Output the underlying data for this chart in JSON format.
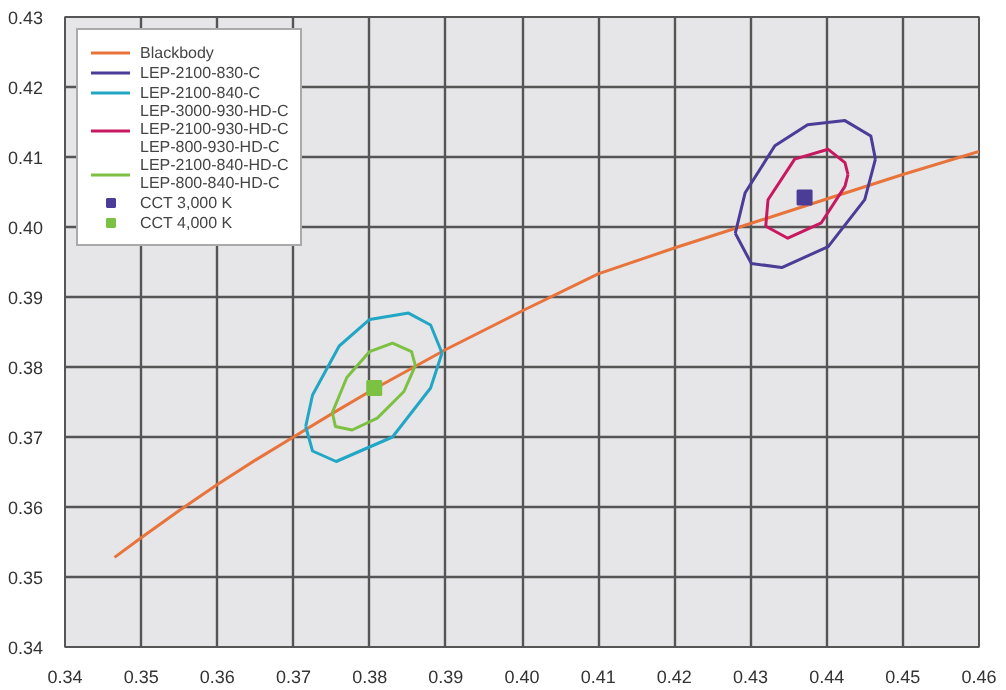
{
  "chart_data": {
    "type": "line",
    "xlim": [
      0.34,
      0.46
    ],
    "ylim": [
      0.34,
      0.43
    ],
    "xticks": [
      {
        "value": 0.34,
        "label": "0.34"
      },
      {
        "value": 0.35,
        "label": "0.35"
      },
      {
        "value": 0.36,
        "label": "0.36"
      },
      {
        "value": 0.37,
        "label": "0.37"
      },
      {
        "value": 0.38,
        "label": "0.38"
      },
      {
        "value": 0.39,
        "label": "0.39"
      },
      {
        "value": 0.4,
        "label": "0.40"
      },
      {
        "value": 0.41,
        "label": "0.41"
      },
      {
        "value": 0.42,
        "label": "0.42"
      },
      {
        "value": 0.43,
        "label": "0.43"
      },
      {
        "value": 0.44,
        "label": "0.44"
      },
      {
        "value": 0.45,
        "label": "0.45"
      },
      {
        "value": 0.46,
        "label": "0.46"
      }
    ],
    "yticks": [
      {
        "value": 0.34,
        "label": "0.34"
      },
      {
        "value": 0.35,
        "label": "0.35"
      },
      {
        "value": 0.36,
        "label": "0.36"
      },
      {
        "value": 0.37,
        "label": "0.37"
      },
      {
        "value": 0.38,
        "label": "0.38"
      },
      {
        "value": 0.39,
        "label": "0.39"
      },
      {
        "value": 0.4,
        "label": "0.40"
      },
      {
        "value": 0.41,
        "label": "0.41"
      },
      {
        "value": 0.42,
        "label": "0.42"
      },
      {
        "value": 0.43,
        "label": "0.43"
      }
    ],
    "grid": true,
    "legend": "top left",
    "line_style": "solid",
    "series": [
      {
        "name": "Blackbody",
        "color": "#e8743b",
        "x": [
          0.3465,
          0.35,
          0.355,
          0.36,
          0.365,
          0.37,
          0.375,
          0.38,
          0.385,
          0.39,
          0.4,
          0.41,
          0.42,
          0.43,
          0.44,
          0.45,
          0.46
        ],
        "values": [
          0.3528,
          0.3556,
          0.3595,
          0.3632,
          0.3667,
          0.37,
          0.3733,
          0.3765,
          0.3795,
          0.3825,
          0.388,
          0.3933,
          0.397,
          0.4005,
          0.404,
          0.4075,
          0.4108
        ]
      },
      {
        "name": "LEP-2100-830-C",
        "color": "#4b3d97",
        "x": [
          0.428,
          0.4293,
          0.4332,
          0.4375,
          0.4424,
          0.4458,
          0.4464
        ],
        "values": [
          0.3991,
          0.4049,
          0.4116,
          0.4146,
          0.4152,
          0.413,
          0.4097
        ]
      },
      {
        "color": "#4b3d97",
        "x": [
          0.428,
          0.4301,
          0.4341,
          0.4402,
          0.445,
          0.4464
        ],
        "values": [
          0.3991,
          0.3948,
          0.3942,
          0.3972,
          0.4039,
          0.4097
        ]
      },
      {
        "name": "LEP-2100-840-C",
        "color": "#21a6c6",
        "x": [
          0.3716,
          0.3725,
          0.376,
          0.38,
          0.3851,
          0.388,
          0.3895
        ],
        "values": [
          0.3715,
          0.376,
          0.383,
          0.3868,
          0.3877,
          0.386,
          0.382
        ]
      },
      {
        "color": "#21a6c6",
        "x": [
          0.3716,
          0.3725,
          0.3756,
          0.383,
          0.388,
          0.3895
        ],
        "values": [
          0.3715,
          0.368,
          0.3665,
          0.37,
          0.377,
          0.382
        ]
      },
      {
        "name": "LEP-3000-930-HD-C\nLEP-2100-930-HD-C\nLEP-800-930-HD-C",
        "color": "#c81860",
        "x": [
          0.432,
          0.4323,
          0.4358,
          0.4402,
          0.4424,
          0.4428
        ],
        "values": [
          0.4001,
          0.4039,
          0.4097,
          0.4111,
          0.4092,
          0.4075
        ]
      },
      {
        "color": "#c81860",
        "x": [
          0.432,
          0.4349,
          0.4393,
          0.4424,
          0.4428
        ],
        "values": [
          0.4001,
          0.3984,
          0.4006,
          0.4058,
          0.4075
        ]
      },
      {
        "name": "LEP-2100-840-HD-C\nLEP-800-840-HD-C",
        "color": "#7dc142",
        "x": [
          0.3751,
          0.377,
          0.38,
          0.383,
          0.3855,
          0.386
        ],
        "values": [
          0.3735,
          0.3785,
          0.3822,
          0.3834,
          0.3822,
          0.3802
        ]
      },
      {
        "color": "#7dc142",
        "x": [
          0.3751,
          0.3755,
          0.3777,
          0.381,
          0.3845,
          0.386
        ],
        "values": [
          0.3735,
          0.3715,
          0.371,
          0.3727,
          0.3765,
          0.3802
        ]
      },
      {
        "name": "CCT 3,000 K",
        "color": "#4b3d97",
        "type": "scatter",
        "marker": "square",
        "x": [
          0.4371
        ],
        "values": [
          0.4042
        ]
      },
      {
        "name": "CCT 4,000 K",
        "color": "#7dc142",
        "type": "scatter",
        "marker": "square",
        "x": [
          0.3806
        ],
        "values": [
          0.377
        ]
      }
    ]
  }
}
